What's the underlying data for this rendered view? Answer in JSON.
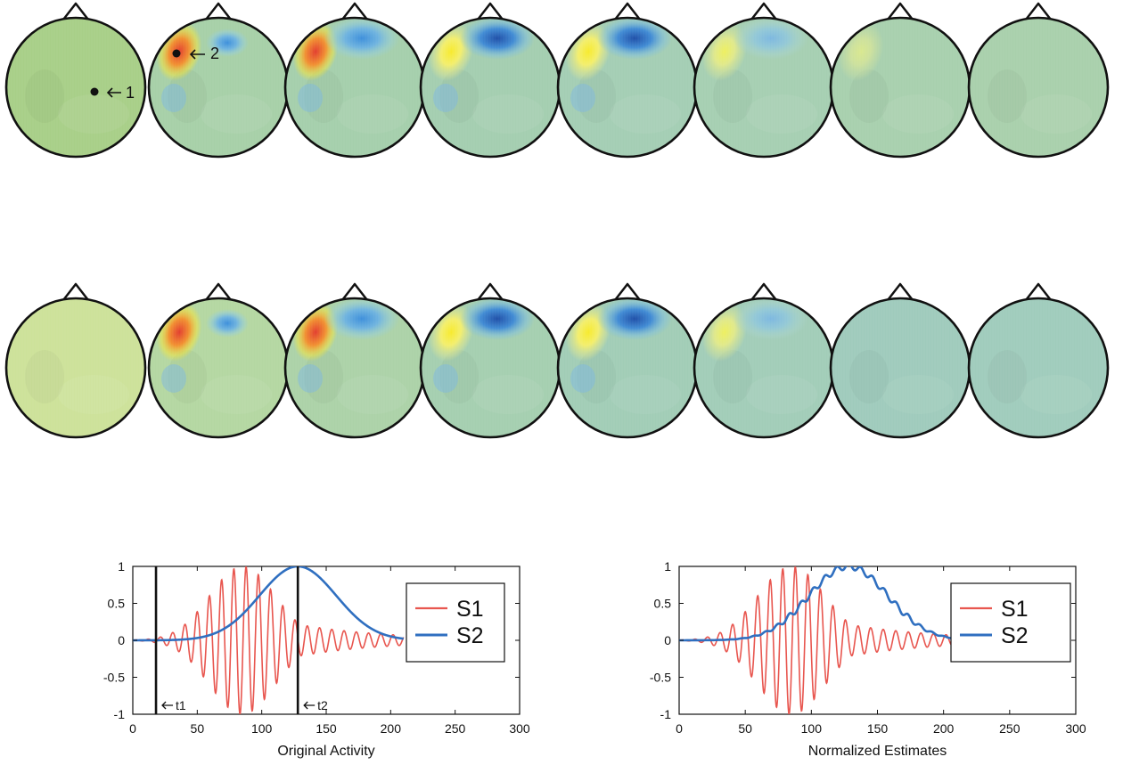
{
  "topomaps": {
    "rows": [
      {
        "frames": [
          {
            "bg": "#a8cf88",
            "blobs": []
          },
          {
            "bg": "#a7d0a8",
            "blobs": [
              {
                "kind": "pos",
                "strength": 1.0
              },
              {
                "kind": "neg_small",
                "strength": 0.5
              }
            ]
          },
          {
            "bg": "#a5cfac",
            "blobs": [
              {
                "kind": "pos",
                "strength": 0.9
              },
              {
                "kind": "neg",
                "strength": 0.6
              }
            ]
          },
          {
            "bg": "#a4ceb0",
            "blobs": [
              {
                "kind": "pos",
                "strength": 0.7
              },
              {
                "kind": "neg",
                "strength": 1.0
              }
            ]
          },
          {
            "bg": "#a4ceb4",
            "blobs": [
              {
                "kind": "pos",
                "strength": 0.55
              },
              {
                "kind": "neg",
                "strength": 0.9
              }
            ]
          },
          {
            "bg": "#a6cfb2",
            "blobs": [
              {
                "kind": "pos",
                "strength": 0.35
              },
              {
                "kind": "neg",
                "strength": 0.4
              }
            ]
          },
          {
            "bg": "#a8d0ae",
            "blobs": [
              {
                "kind": "pos",
                "strength": 0.12
              }
            ]
          },
          {
            "bg": "#a9d0ac",
            "blobs": []
          }
        ],
        "electrode_labels": [
          "1",
          "2"
        ]
      },
      {
        "frames": [
          {
            "bg": "#cde29a",
            "blobs": []
          },
          {
            "bg": "#b4d7a2",
            "blobs": [
              {
                "kind": "pos",
                "strength": 0.9
              },
              {
                "kind": "neg_small",
                "strength": 0.5
              }
            ]
          },
          {
            "bg": "#acd2a8",
            "blobs": [
              {
                "kind": "pos",
                "strength": 0.95
              },
              {
                "kind": "neg",
                "strength": 0.6
              }
            ]
          },
          {
            "bg": "#a5cfb0",
            "blobs": [
              {
                "kind": "pos",
                "strength": 0.75
              },
              {
                "kind": "neg",
                "strength": 1.0
              }
            ]
          },
          {
            "bg": "#a1cdb6",
            "blobs": [
              {
                "kind": "pos",
                "strength": 0.6
              },
              {
                "kind": "neg",
                "strength": 0.95
              }
            ]
          },
          {
            "bg": "#a2cdb8",
            "blobs": [
              {
                "kind": "pos",
                "strength": 0.35
              },
              {
                "kind": "neg",
                "strength": 0.45
              }
            ]
          },
          {
            "bg": "#9fcbbc",
            "blobs": []
          },
          {
            "bg": "#a0ccbc",
            "blobs": []
          }
        ]
      }
    ]
  },
  "chart_data": [
    {
      "type": "line",
      "title": "",
      "xlabel": "Original Activity",
      "ylabel": "",
      "xlim": [
        0,
        300
      ],
      "ylim": [
        -1,
        1
      ],
      "xticks": [
        "0",
        "50",
        "100",
        "150",
        "200",
        "250",
        "300"
      ],
      "yticks": [
        "1",
        "0.5",
        "0",
        "-0.5",
        "-1"
      ],
      "series": [
        {
          "name": "S1",
          "color": "#e8564f",
          "kind": "oscillation",
          "x_range": [
            0,
            210
          ],
          "envelope_peak_x": 85,
          "period": 9.5,
          "noise": 0
        },
        {
          "name": "S2",
          "color": "#2f6fc0",
          "kind": "gaussian",
          "x_range": [
            0,
            210
          ],
          "peak_x": 128,
          "noise": 0
        }
      ],
      "markers": [
        {
          "x": 18,
          "label": "t1"
        },
        {
          "x": 128,
          "label": "t2"
        }
      ],
      "legend": "right"
    },
    {
      "type": "line",
      "title": "",
      "xlabel": "Normalized Estimates",
      "ylabel": "",
      "xlim": [
        0,
        300
      ],
      "ylim": [
        -1,
        1
      ],
      "xticks": [
        "0",
        "50",
        "100",
        "150",
        "200",
        "250",
        "300"
      ],
      "yticks": [
        "1",
        "0.5",
        "0",
        "-0.5",
        "-1"
      ],
      "series": [
        {
          "name": "S1",
          "color": "#e8564f",
          "kind": "oscillation",
          "x_range": [
            0,
            210
          ],
          "envelope_peak_x": 85,
          "period": 9.5,
          "noise": 0
        },
        {
          "name": "S2",
          "color": "#2f6fc0",
          "kind": "gaussian",
          "x_range": [
            0,
            210
          ],
          "peak_x": 128,
          "noise": 0.04
        }
      ],
      "markers": [],
      "legend": "right"
    }
  ]
}
